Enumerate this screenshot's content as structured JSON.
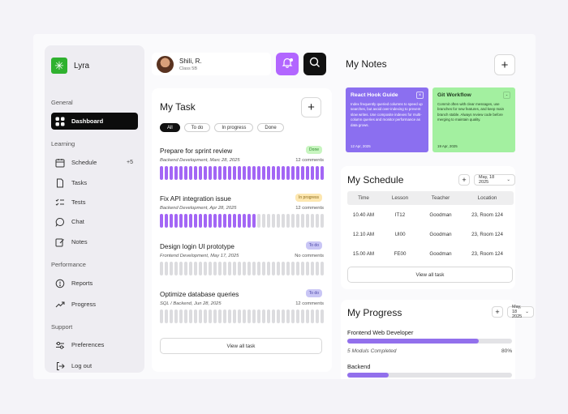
{
  "app": {
    "name": "Lyra"
  },
  "sidebar": {
    "sections": [
      {
        "title": "General",
        "items": [
          {
            "label": "Dashboard",
            "icon": "grid-icon",
            "active": true
          }
        ]
      },
      {
        "title": "Learning",
        "items": [
          {
            "label": "Schedule",
            "icon": "calendar-icon",
            "badge": "+5"
          },
          {
            "label": "Tasks",
            "icon": "document-icon"
          },
          {
            "label": "Tests",
            "icon": "checklist-icon"
          },
          {
            "label": "Chat",
            "icon": "chat-icon"
          },
          {
            "label": "Notes",
            "icon": "edit-icon"
          }
        ]
      },
      {
        "title": "Performance",
        "items": [
          {
            "label": "Reports",
            "icon": "alert-circle-icon"
          },
          {
            "label": "Progress",
            "icon": "trend-up-icon"
          }
        ]
      },
      {
        "title": "Support",
        "items": [
          {
            "label": "Preferences",
            "icon": "sliders-icon"
          },
          {
            "label": "Log out",
            "icon": "logout-icon"
          }
        ]
      }
    ]
  },
  "header": {
    "user": {
      "name": "Shili, R.",
      "class": "Class 5B"
    },
    "bell_icon": "bell-icon",
    "search_icon": "search-icon",
    "accent": "#b266ff"
  },
  "tasks": {
    "title": "My Task",
    "add_label": "+",
    "filters": [
      "All",
      "To do",
      "In progress",
      "Done"
    ],
    "items": [
      {
        "title": "Prepare for sprint review",
        "meta": "Backend Development, Marc 28, 2025",
        "comments": "12 comments",
        "status": "Done",
        "status_bg": "#c8f5c0",
        "status_color": "#2b8a2b",
        "progress": 1.0
      },
      {
        "title": "Fix API integration issue",
        "meta": "Backend Development, Apr 28, 2025",
        "comments": "12 comments",
        "status": "In progress",
        "status_bg": "#fde7b0",
        "status_color": "#8a6a1a",
        "progress": 0.58
      },
      {
        "title": "Design login UI prototype",
        "meta": "Frontend Development, May 17, 2025",
        "comments": "No comments",
        "status": "To do",
        "status_bg": "#c9c6f5",
        "status_color": "#4b46a8",
        "progress": 0
      },
      {
        "title": "Optimize database queries",
        "meta": "SQL / Backend, Jun 28, 2025",
        "comments": "12 comments",
        "status": "To do",
        "status_bg": "#c9c6f5",
        "status_color": "#4b46a8",
        "progress": 0
      }
    ],
    "view_all": "View all task"
  },
  "notes": {
    "title": "My Notes",
    "add_label": "+",
    "items": [
      {
        "title": "React Hook Guide",
        "body": "Index frequently queried columns to speed up searches, but avoid over-indexing to prevent slow writes. Use composite indexes for multi-column queries and monitor performance as data grows.",
        "date": "12 Apr, 2025",
        "bg": "#8b6ff0",
        "color": "#ffffff"
      },
      {
        "title": "Git Workflow",
        "body": "Commit often with clear messages, use branches for new features, and keep main branch stable. Always review code before merging to maintain quality.",
        "date": "19 Apr, 2025",
        "bg": "#a3f0a0",
        "color": "#1f3b1f"
      }
    ]
  },
  "schedule": {
    "title": "My Schedule",
    "add_label": "+",
    "date": "May, 18 2025",
    "columns": [
      "Time",
      "Lesson",
      "Teacher",
      "Location"
    ],
    "rows": [
      [
        "10.40 AM",
        "IT12",
        "Goodman",
        "23, Room 124"
      ],
      [
        "12.10 AM",
        "UI00",
        "Goodman",
        "23, Room 124"
      ],
      [
        "15.00 AM",
        "FE00",
        "Goodman",
        "23, Room 124"
      ]
    ],
    "view_all": "View all task"
  },
  "progress": {
    "title": "My Progress",
    "add_label": "+",
    "date": "May, 18 2025",
    "items": [
      {
        "label": "Frontend Web Developer",
        "sub": "5 Moduls Completed",
        "pct_label": "80%",
        "value": 0.8
      },
      {
        "label": "Backend",
        "value": 0.25
      }
    ]
  }
}
